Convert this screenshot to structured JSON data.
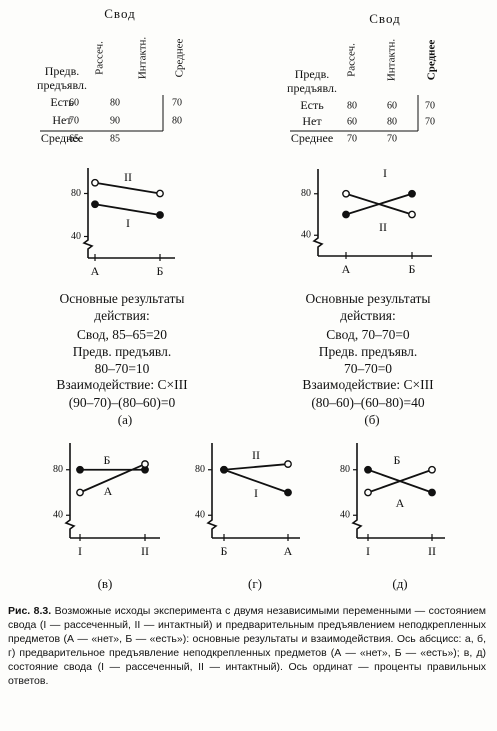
{
  "panels": [
    {
      "table": {
        "header": "Свод",
        "columns": [
          "Рассеч.",
          "Интактн.",
          "Среднее"
        ],
        "row_header": [
          "Предв.",
          "предъявл."
        ],
        "rows": [
          [
            "Есть",
            60,
            80,
            70
          ],
          [
            "Нет",
            70,
            90,
            80
          ],
          [
            "Среднее",
            65,
            85
          ]
        ]
      },
      "results": [
        "Основные результаты",
        "действия:",
        "Свод, 85–65=20",
        "Предв. предъявл.",
        "80–70=10",
        "Взаимодействие: С×III",
        "(90–70)–(80–60)=0"
      ]
    },
    {
      "table": {
        "header": "Свод",
        "columns": [
          "Рассеч.",
          "Интактн.",
          "Среднее"
        ],
        "row_header": [
          "Предв.",
          "предъявл."
        ],
        "rows": [
          [
            "Есть",
            80,
            60,
            70
          ],
          [
            "Нет",
            60,
            80,
            70
          ],
          [
            "Среднее",
            70,
            70
          ]
        ]
      },
      "results": [
        "Основные результаты",
        "действия:",
        "Свод, 70–70=0",
        "Предв. предъявл.",
        "70–70=0",
        "Взаимодействие: С×III",
        "(80–60)–(60–80)=40"
      ]
    }
  ],
  "chart_data": [
    {
      "type": "line",
      "label": "(а)",
      "categories": [
        "А",
        "Б"
      ],
      "ylim": [
        20,
        100
      ],
      "yticks": [
        40,
        80
      ],
      "series": [
        {
          "name": "II",
          "marker": "open",
          "color": "#111111",
          "values": [
            90,
            80
          ]
        },
        {
          "name": "I",
          "marker": "filled",
          "color": "#111111",
          "values": [
            70,
            60
          ]
        }
      ]
    },
    {
      "type": "line",
      "label": "(б)",
      "categories": [
        "А",
        "Б"
      ],
      "ylim": [
        20,
        100
      ],
      "yticks": [
        40,
        80
      ],
      "series": [
        {
          "name": "I",
          "marker": "filled",
          "color": "#111111",
          "values": [
            60,
            80
          ]
        },
        {
          "name": "II",
          "marker": "open",
          "color": "#111111",
          "values": [
            80,
            60
          ]
        }
      ]
    },
    {
      "type": "line",
      "label": "(в)",
      "categories": [
        "I",
        "II"
      ],
      "ylim": [
        20,
        100
      ],
      "yticks": [
        40,
        80
      ],
      "series": [
        {
          "name": "Б",
          "marker": "filled",
          "color": "#111111",
          "values": [
            80,
            80
          ]
        },
        {
          "name": "А",
          "marker": "open",
          "color": "#111111",
          "values": [
            60,
            85
          ]
        }
      ]
    },
    {
      "type": "line",
      "label": "(г)",
      "categories": [
        "Б",
        "А"
      ],
      "ylim": [
        20,
        100
      ],
      "yticks": [
        40,
        80
      ],
      "series": [
        {
          "name": "II",
          "marker": "open",
          "color": "#111111",
          "values": [
            80,
            85
          ]
        },
        {
          "name": "I",
          "marker": "filled",
          "color": "#111111",
          "values": [
            80,
            60
          ]
        }
      ]
    },
    {
      "type": "line",
      "label": "(д)",
      "categories": [
        "I",
        "II"
      ],
      "ylim": [
        20,
        100
      ],
      "yticks": [
        40,
        80
      ],
      "series": [
        {
          "name": "Б",
          "marker": "filled",
          "color": "#111111",
          "values": [
            80,
            60
          ]
        },
        {
          "name": "А",
          "marker": "open",
          "color": "#111111",
          "values": [
            60,
            80
          ]
        }
      ]
    }
  ],
  "caption": {
    "label": "Рис. 8.3.",
    "text": "Возможные исходы эксперимента с двумя независимыми переменными — состоянием свода (I — рассеченный, II — интактный) и предварительным предъявлением неподкрепленных предметов (А — «нет», Б — «есть»): основные результаты и взаимодействия. Ось абсцисс: а, б, г) предварительное предъявление неподкрепленных предметов (А — «нет», Б — «есть»); в, д) состояние свода (I — рассеченный, II — интактный). Ось ординат — проценты правильных ответов."
  }
}
